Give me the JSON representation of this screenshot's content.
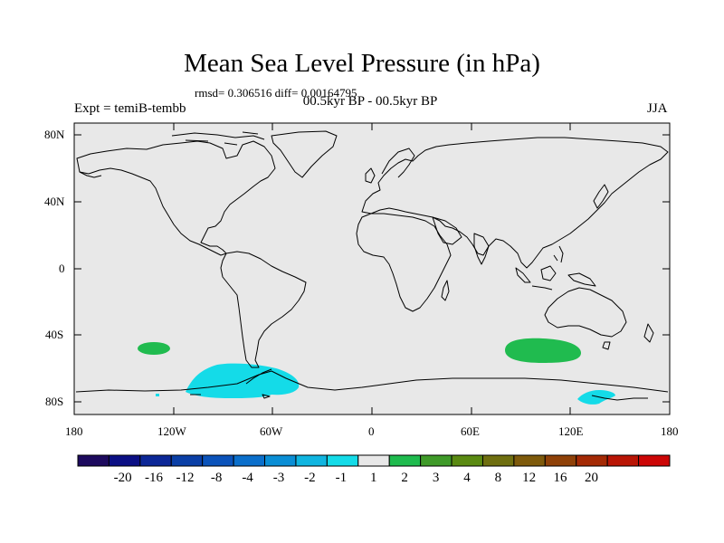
{
  "title": "Mean Sea Level Pressure (in hPa)",
  "stats": "rmsd= 0.306516 diff= 0.00164795",
  "subtitle": "00.5kyr BP - 00.5kyr BP",
  "left_label": "Expt = temiB-tembb",
  "right_label": "JJA",
  "lat_ticks": [
    "80N",
    "40N",
    "0",
    "40S",
    "80S"
  ],
  "lon_ticks": [
    "180",
    "120W",
    "60W",
    "0",
    "60E",
    "120E",
    "180"
  ],
  "colorbar": {
    "colors": [
      "#1d0a5e",
      "#0b0f84",
      "#0c2797",
      "#0a3fa6",
      "#0b53ba",
      "#0b6fcb",
      "#0a8ed5",
      "#10b5e0",
      "#14dbe8",
      "#e8e8e8",
      "#1fbb4e",
      "#3f9a29",
      "#5a8a12",
      "#6f6f10",
      "#7e5a0b",
      "#8f4108",
      "#a42a05",
      "#b91505",
      "#cc0606"
    ],
    "labels": [
      "-20",
      "-16",
      "-12",
      "-8",
      "-4",
      "-3",
      "-2",
      "-1",
      "1",
      "2",
      "3",
      "4",
      "8",
      "12",
      "16",
      "20"
    ]
  },
  "colors": {
    "ocean_bg": "#e8e8e8",
    "positive": "#20bb4f",
    "negative": "#14dbe8",
    "coast": "#000000"
  },
  "anomalies": [
    {
      "name": "south-pacific-high",
      "sign": "positive",
      "label": "+1 to +2"
    },
    {
      "name": "indian-ocean-high",
      "sign": "positive",
      "label": "+1 to +2"
    },
    {
      "name": "amundsen-low",
      "sign": "negative",
      "label": "-1 to -2"
    },
    {
      "name": "ross-low",
      "sign": "negative",
      "label": "-1 to -2"
    }
  ]
}
